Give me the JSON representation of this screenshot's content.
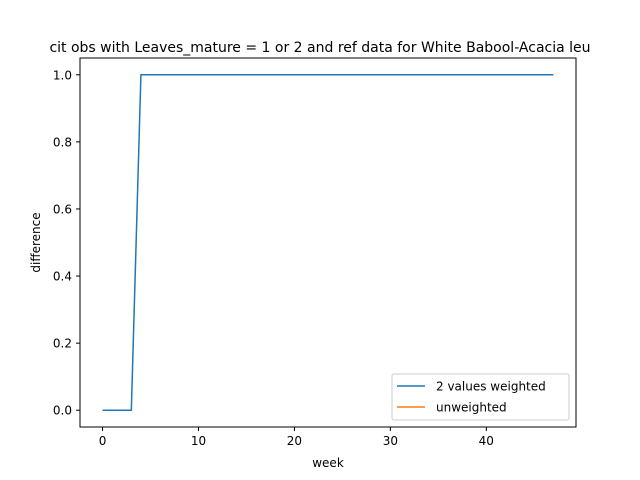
{
  "chart_data": {
    "type": "line",
    "title": "cit obs with Leaves_mature = 1 or 2 and ref data for White Babool-Acacia leu",
    "xlabel": "week",
    "ylabel": "difference",
    "xlim": [
      -2.35,
      49.35
    ],
    "ylim": [
      -0.05,
      1.05
    ],
    "xticks": [
      0,
      10,
      20,
      30,
      40
    ],
    "yticks": [
      0.0,
      0.2,
      0.4,
      0.6,
      0.8,
      1.0
    ],
    "xtick_labels": [
      "0",
      "10",
      "20",
      "30",
      "40"
    ],
    "ytick_labels": [
      "0.0",
      "0.2",
      "0.4",
      "0.6",
      "0.8",
      "1.0"
    ],
    "grid": false,
    "legend_position": "lower-right",
    "series": [
      {
        "name": "2 values weighted",
        "color": "#1f77b4",
        "x": [
          0,
          1,
          2,
          3,
          4,
          5,
          6,
          7,
          8,
          9,
          10,
          11,
          12,
          13,
          14,
          15,
          16,
          17,
          18,
          19,
          20,
          21,
          22,
          23,
          24,
          25,
          26,
          27,
          28,
          29,
          30,
          31,
          32,
          33,
          34,
          35,
          36,
          37,
          38,
          39,
          40,
          41,
          42,
          43,
          44,
          45,
          46,
          47
        ],
        "y": [
          0,
          0,
          0,
          0,
          1,
          1,
          1,
          1,
          1,
          1,
          1,
          1,
          1,
          1,
          1,
          1,
          1,
          1,
          1,
          1,
          1,
          1,
          1,
          1,
          1,
          1,
          1,
          1,
          1,
          1,
          1,
          1,
          1,
          1,
          1,
          1,
          1,
          1,
          1,
          1,
          1,
          1,
          1,
          1,
          1,
          1,
          1,
          1
        ]
      },
      {
        "name": "unweighted",
        "color": "#ff7f0e",
        "x": [],
        "y": []
      }
    ]
  }
}
